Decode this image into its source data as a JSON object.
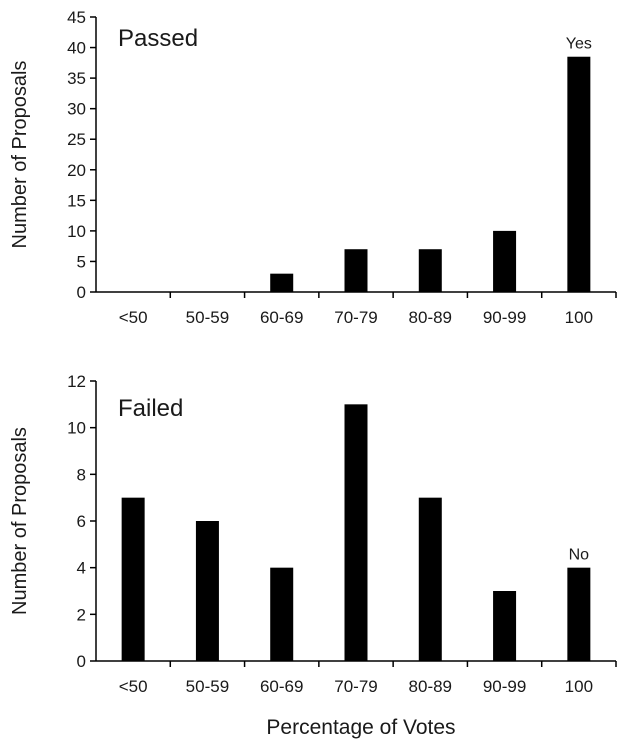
{
  "chart_data": [
    {
      "type": "bar",
      "title": "Passed",
      "ylabel": "Number of Proposals",
      "xlabel": "",
      "categories": [
        "<50",
        "50-59",
        "60-69",
        "70-79",
        "80-89",
        "90-99",
        "100"
      ],
      "values": [
        0,
        0,
        3,
        7,
        7,
        10,
        38.5
      ],
      "ylim": [
        0,
        45
      ],
      "yticks": [
        0,
        5,
        10,
        15,
        20,
        25,
        30,
        35,
        40,
        45
      ],
      "annotations": [
        {
          "category": "100",
          "text": "Yes"
        }
      ],
      "bar_color": "#000000",
      "grid": false
    },
    {
      "type": "bar",
      "title": "Failed",
      "ylabel": "Number of Proposals",
      "xlabel": "Percentage of Votes",
      "categories": [
        "<50",
        "50-59",
        "60-69",
        "70-79",
        "80-89",
        "90-99",
        "100"
      ],
      "values": [
        7,
        6,
        4,
        11,
        7,
        3,
        4
      ],
      "ylim": [
        0,
        12
      ],
      "yticks": [
        0,
        2,
        4,
        6,
        8,
        10,
        12
      ],
      "annotations": [
        {
          "category": "100",
          "text": "No"
        }
      ],
      "bar_color": "#000000",
      "grid": false
    }
  ]
}
